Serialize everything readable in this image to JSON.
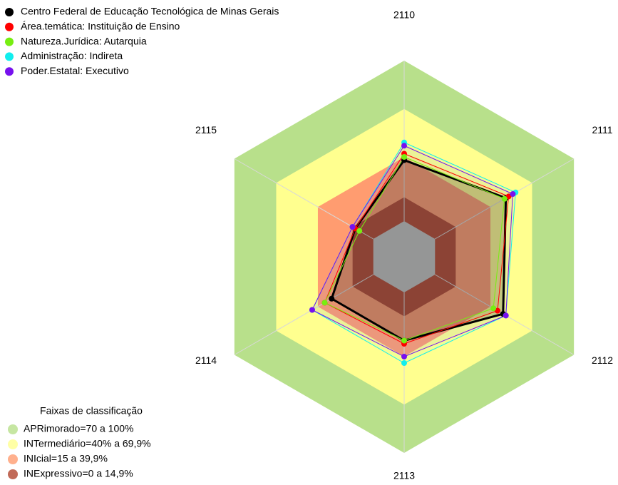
{
  "chart_data": {
    "type": "radar",
    "categories": [
      "2110",
      "2111",
      "2112",
      "2113",
      "2114",
      "2115"
    ],
    "rlim": [
      0,
      100
    ],
    "series": [
      {
        "name": "Centro Federal de Educação Tecnológica de Minas Gerais",
        "color": "#000000",
        "values": [
          38,
          51,
          49,
          30,
          30,
          13
        ]
      },
      {
        "name": "Área.temática: Instituição de Ensino",
        "color": "#ff0000",
        "values": [
          42,
          53,
          45,
          32,
          35,
          13
        ]
      },
      {
        "name": "Natureza.Jurídica: Autarquia",
        "color": "#77ee11",
        "values": [
          40,
          50,
          42,
          30,
          35,
          10
        ]
      },
      {
        "name": "Administração: Indireta",
        "color": "#11eeee",
        "values": [
          49,
          58,
          51,
          44,
          44,
          15
        ]
      },
      {
        "name": "Poder.Estatal: Executivo",
        "color": "#7711ee",
        "values": [
          47,
          56,
          51,
          40,
          44,
          15
        ]
      }
    ],
    "bands_title": "Faixas de classificação",
    "bands": [
      {
        "name": "APRimorado=70 a 100%",
        "color": "#b8e08b",
        "from": 70,
        "to": 100
      },
      {
        "name": "INTermediário=40% a 69,9%",
        "color": "#ffff8f",
        "from": 40,
        "to": 69.9
      },
      {
        "name": "INIcial=15 a 39,9%",
        "color": "#ff9c70",
        "from": 15,
        "to": 39.9
      },
      {
        "name": "INExpressivo=0 a 14,9%",
        "color": "#b2452e",
        "from": 0,
        "to": 14.9
      }
    ]
  }
}
